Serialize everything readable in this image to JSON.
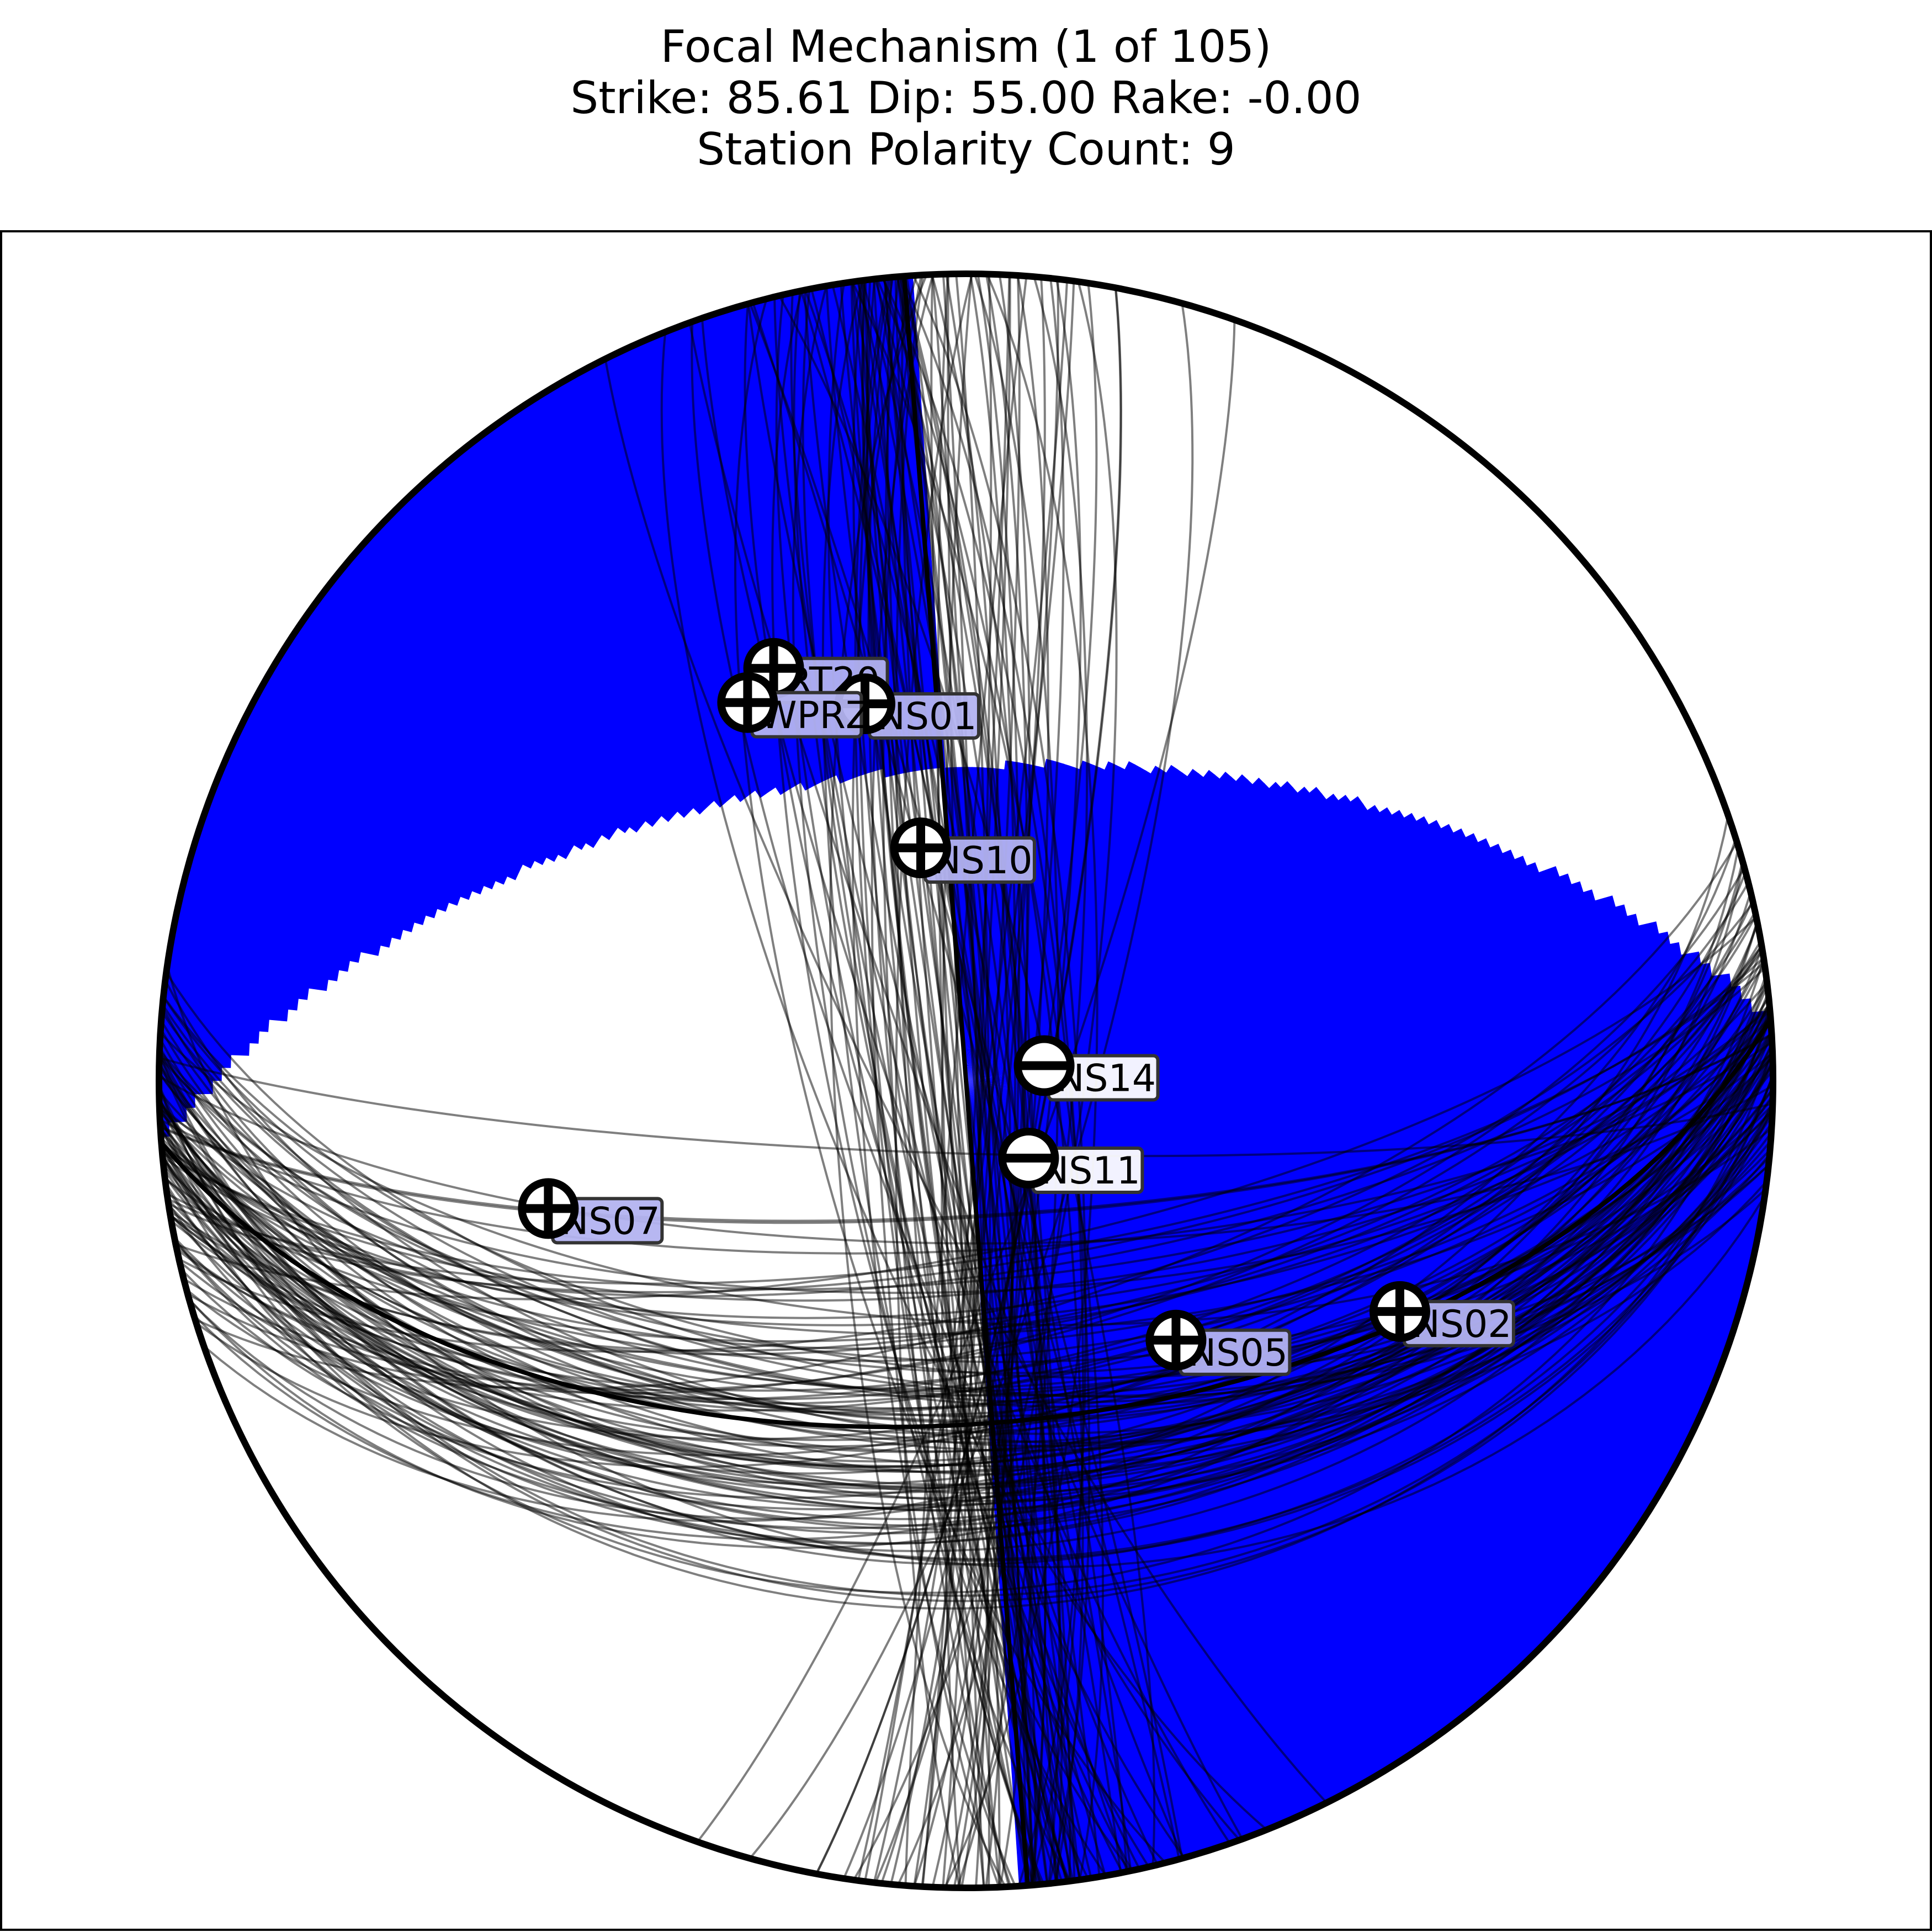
{
  "chart_data": {
    "type": "scatter",
    "title_lines": [
      "Focal Mechanism (1 of 105)",
      "Strike:  85.61  Dip:  55.00  Rake:  -0.00",
      "Station Polarity Count: 9"
    ],
    "focal_mechanism": {
      "strike": 85.61,
      "dip": 55.0,
      "rake": -0.0
    },
    "solution_count": 105,
    "station_polarity_count": 9,
    "colors": {
      "compression_fill": "#0000ff",
      "dilatation_fill": "#ffffff",
      "outline": "#000000",
      "compression_label_bg": "#b3b3f0",
      "dilatation_label_bg": "#ffffff"
    },
    "stations": [
      {
        "name": "RT20",
        "polarity": "+",
        "azimuth": 335,
        "takeoff": 47
      },
      {
        "name": "NS01",
        "polarity": "+",
        "azimuth": 345,
        "takeoff": 40
      },
      {
        "name": "WPRZ",
        "polarity": "+",
        "azimuth": 330,
        "takeoff": 45
      },
      {
        "name": "NS10",
        "polarity": "+",
        "azimuth": 349,
        "takeoff": 24
      },
      {
        "name": "NS14",
        "polarity": "-",
        "azimuth": 79,
        "takeoff": 8
      },
      {
        "name": "NS11",
        "polarity": "-",
        "azimuth": 141,
        "takeoff": 10
      },
      {
        "name": "NS07",
        "polarity": "+",
        "azimuth": 253,
        "takeoff": 45
      },
      {
        "name": "NS02",
        "polarity": "+",
        "azimuth": 118,
        "takeoff": 51
      },
      {
        "name": "NS05",
        "polarity": "+",
        "azimuth": 141,
        "takeoff": 34
      }
    ]
  }
}
